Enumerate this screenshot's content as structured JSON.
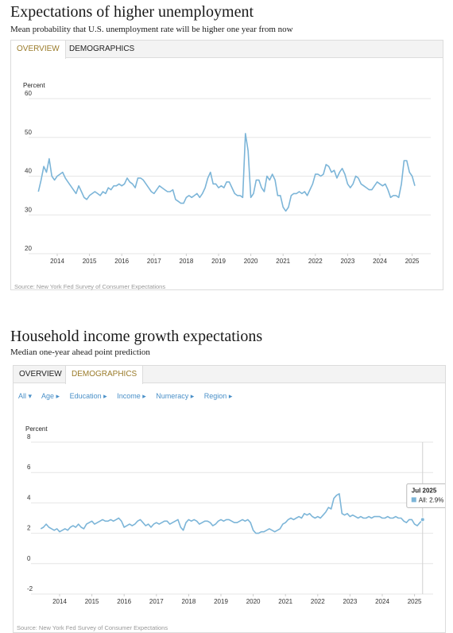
{
  "panels": [
    {
      "title": "Expectations of higher unemployment",
      "subtitle": "Mean probability that U.S. unemployment rate will be higher one year from now",
      "tabs": [
        {
          "label": "OVERVIEW",
          "active": true
        },
        {
          "label": "DEMOGRAPHICS",
          "active": false
        }
      ],
      "source": "Source: New York Fed Survey of Consumer Expectations"
    },
    {
      "title": "Household income growth expectations",
      "subtitle": "Median one-year ahead point prediction",
      "tabs": [
        {
          "label": "OVERVIEW",
          "active": false
        },
        {
          "label": "DEMOGRAPHICS",
          "active": true
        }
      ],
      "filters": [
        "All ▾",
        "Age ▸",
        "Education ▸",
        "Income ▸",
        "Numeracy ▸",
        "Region ▸"
      ],
      "tooltip": {
        "date": "Jul 2025",
        "label": "All: 2.9%"
      },
      "source": "Source: New York Fed Survey of Consumer Expectations"
    }
  ],
  "colors": {
    "line": "#7cb5d8",
    "active_tab": "#9a7b2a",
    "grid": "#e6e6e6",
    "filter": "#4a90c8"
  },
  "chart_data": [
    {
      "type": "line",
      "title": "Expectations of higher unemployment",
      "ylabel": "Percent",
      "ylim": [
        20,
        60
      ],
      "yticks": [
        20,
        30,
        40,
        50,
        60
      ],
      "xticks": [
        "2014",
        "2015",
        "2016",
        "2017",
        "2018",
        "2019",
        "2020",
        "2021",
        "2022",
        "2023",
        "2024",
        "2025"
      ],
      "x_start": "2013-06",
      "series": [
        {
          "values": [
            36.0,
            39.0,
            42.5,
            41.0,
            44.5,
            40.0,
            39.0,
            40.0,
            40.5,
            41.0,
            39.5,
            38.5,
            37.5,
            36.5,
            35.5,
            37.5,
            36.0,
            34.5,
            34.0,
            35.0,
            35.5,
            36.0,
            35.5,
            35.0,
            36.0,
            35.5,
            37.0,
            36.5,
            37.5,
            37.5,
            38.0,
            37.5,
            38.0,
            39.5,
            38.5,
            38.0,
            37.0,
            39.5,
            39.5,
            39.0,
            38.0,
            37.0,
            36.0,
            35.5,
            36.5,
            37.5,
            37.0,
            36.5,
            36.0,
            36.0,
            36.5,
            34.0,
            33.5,
            33.0,
            33.0,
            34.5,
            35.0,
            34.5,
            35.0,
            35.5,
            34.5,
            35.5,
            37.0,
            39.5,
            41.0,
            38.0,
            38.0,
            37.0,
            37.5,
            37.0,
            38.5,
            38.5,
            37.0,
            35.5,
            35.0,
            35.0,
            34.5,
            51.0,
            46.5,
            34.5,
            35.5,
            39.0,
            39.0,
            37.0,
            36.0,
            40.0,
            39.0,
            40.5,
            39.0,
            35.0,
            35.0,
            32.0,
            31.0,
            32.0,
            35.0,
            35.5,
            35.5,
            36.0,
            35.5,
            36.0,
            35.0,
            36.5,
            38.0,
            40.5,
            40.5,
            40.0,
            40.5,
            43.0,
            42.5,
            41.0,
            41.5,
            39.5,
            41.0,
            42.0,
            40.5,
            38.0,
            37.0,
            38.0,
            40.0,
            39.5,
            38.0,
            37.5,
            37.0,
            36.5,
            36.5,
            37.5,
            38.5,
            38.0,
            37.5,
            38.0,
            36.5,
            34.5,
            35.0,
            35.0,
            34.5,
            38.0,
            44.0,
            44.0,
            41.0,
            40.0,
            37.5
          ]
        }
      ]
    },
    {
      "type": "line",
      "title": "Household income growth expectations",
      "ylabel": "Percent",
      "ylim": [
        -2,
        8
      ],
      "yticks": [
        -2,
        0,
        2,
        4,
        6,
        8
      ],
      "xticks": [
        "2014",
        "2015",
        "2016",
        "2017",
        "2018",
        "2019",
        "2020",
        "2021",
        "2022",
        "2023",
        "2024",
        "2025"
      ],
      "x_start": "2013-06",
      "series": [
        {
          "name": "All",
          "values": [
            2.3,
            2.4,
            2.6,
            2.4,
            2.3,
            2.2,
            2.3,
            2.1,
            2.2,
            2.3,
            2.2,
            2.4,
            2.5,
            2.4,
            2.6,
            2.4,
            2.3,
            2.6,
            2.7,
            2.8,
            2.6,
            2.7,
            2.8,
            2.9,
            2.8,
            2.8,
            2.9,
            2.8,
            2.9,
            3.0,
            2.8,
            2.4,
            2.5,
            2.6,
            2.5,
            2.6,
            2.8,
            2.9,
            2.7,
            2.5,
            2.6,
            2.4,
            2.6,
            2.7,
            2.6,
            2.7,
            2.8,
            2.8,
            2.6,
            2.7,
            2.8,
            2.9,
            2.4,
            2.2,
            2.7,
            2.9,
            2.8,
            2.9,
            2.8,
            2.6,
            2.7,
            2.8,
            2.8,
            2.7,
            2.5,
            2.6,
            2.8,
            2.9,
            2.8,
            2.9,
            2.9,
            2.8,
            2.7,
            2.7,
            2.8,
            2.9,
            2.8,
            2.9,
            2.7,
            2.2,
            2.0,
            2.0,
            2.1,
            2.1,
            2.2,
            2.3,
            2.2,
            2.1,
            2.2,
            2.3,
            2.6,
            2.7,
            2.9,
            3.0,
            2.9,
            3.0,
            3.1,
            3.0,
            3.3,
            3.2,
            3.3,
            3.1,
            3.0,
            3.1,
            3.0,
            3.2,
            3.4,
            3.7,
            3.6,
            4.3,
            4.5,
            4.6,
            3.3,
            3.2,
            3.3,
            3.1,
            3.2,
            3.1,
            3.0,
            3.1,
            3.0,
            3.0,
            3.1,
            3.0,
            3.1,
            3.1,
            3.1,
            3.0,
            3.0,
            3.1,
            3.0,
            3.0,
            3.1,
            3.0,
            3.0,
            2.8,
            2.7,
            2.9,
            2.9,
            2.6,
            2.5,
            2.7,
            2.9
          ]
        }
      ]
    }
  ]
}
